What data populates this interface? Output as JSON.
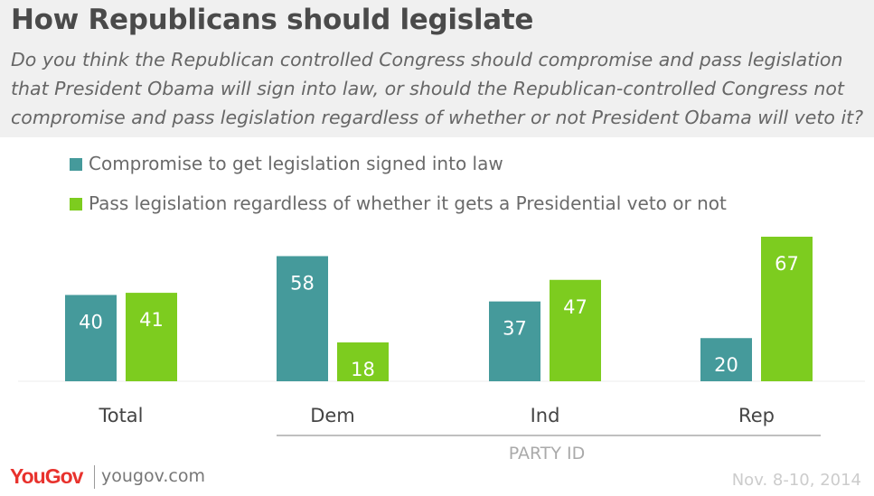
{
  "title": "How Republicans should legislate",
  "subtitle": "Do you think the Republican controlled Congress should compromise and pass legislation that President Obama will sign into law, or should the Republican-controlled Congress not compromise and pass legislation regardless of whether or not President Obama will veto it?",
  "colors": {
    "teal": "#459a9b",
    "green": "#7dcc1f",
    "header_bg": "#f0f0f0"
  },
  "legend": [
    {
      "label": "Compromise to get legislation signed into law",
      "color": "#459a9b"
    },
    {
      "label": "Pass legislation regardless of whether it gets a Presidential veto or not",
      "color": "#7dcc1f"
    }
  ],
  "chart_data": {
    "type": "bar",
    "categories": [
      "Total",
      "Dem",
      "Ind",
      "Rep"
    ],
    "series": [
      {
        "name": "Compromise to get legislation signed into law",
        "values": [
          40,
          58,
          37,
          20
        ],
        "color": "#459a9b"
      },
      {
        "name": "Pass legislation regardless of whether it gets a Presidential veto or not",
        "values": [
          41,
          18,
          47,
          67
        ],
        "color": "#7dcc1f"
      }
    ],
    "group_label": "PARTY ID",
    "ylim": [
      0,
      67
    ],
    "grid": false,
    "legend_position": "top-left"
  },
  "footer": {
    "logo": "YouGov",
    "url": "yougov.com",
    "date": "Nov. 8-10, 2014"
  }
}
